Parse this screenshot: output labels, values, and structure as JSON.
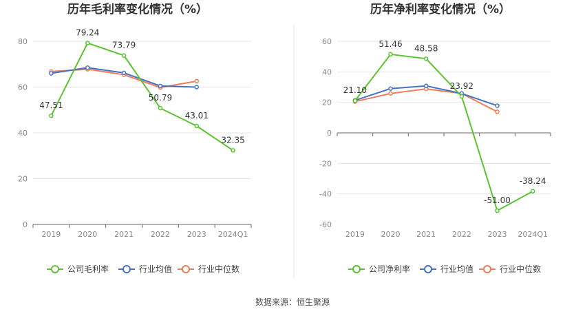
{
  "source_text": "数据来源：恒生聚源",
  "colors": {
    "company": "#5ac32f",
    "avg": "#4472c4",
    "median": "#ee7c58",
    "grid": "#e6e6e6",
    "axis": "#666666",
    "divider": "#e8e8e8"
  },
  "chart_data": [
    {
      "type": "line",
      "title": "历年毛利率变化情况（%）",
      "categories": [
        "2019",
        "2020",
        "2021",
        "2022",
        "2023",
        "2024Q1"
      ],
      "ylim": [
        0,
        80
      ],
      "yticks": [
        0,
        20,
        40,
        60,
        80
      ],
      "ytick_labels": [
        "0",
        "20",
        "40",
        "60",
        "80"
      ],
      "grid": true,
      "legend_position": "bottom",
      "series": [
        {
          "name": "公司毛利率",
          "color": "#5ac32f",
          "values": [
            47.51,
            79.24,
            73.79,
            50.79,
            43.01,
            32.35
          ],
          "labels": [
            "47.51",
            "79.24",
            "73.79",
            "50.79",
            "43.01",
            "32.35"
          ]
        },
        {
          "name": "行业均值",
          "color": "#4472c4",
          "values": [
            66.0,
            68.5,
            66.2,
            60.5,
            60.0,
            null
          ]
        },
        {
          "name": "行业中位数",
          "color": "#ee7c58",
          "values": [
            66.8,
            67.8,
            65.4,
            59.8,
            62.6,
            null
          ]
        }
      ]
    },
    {
      "type": "line",
      "title": "历年净利率变化情况（%）",
      "categories": [
        "2019",
        "2020",
        "2021",
        "2022",
        "2023",
        "2024Q1"
      ],
      "ylim": [
        -60,
        60
      ],
      "yticks": [
        -60,
        -40,
        -20,
        0,
        20,
        40,
        60
      ],
      "ytick_labels": [
        "-60",
        "-40",
        "-20",
        "0",
        "20",
        "40",
        "60"
      ],
      "grid": true,
      "legend_position": "bottom",
      "series": [
        {
          "name": "公司净利率",
          "color": "#5ac32f",
          "values": [
            21.1,
            51.46,
            48.58,
            23.92,
            -51.0,
            -38.24
          ],
          "labels": [
            "21.10",
            "51.46",
            "48.58",
            "23.92",
            "-51.00",
            "-38.24"
          ]
        },
        {
          "name": "行业均值",
          "color": "#4472c4",
          "values": [
            21.3,
            29.0,
            30.8,
            25.8,
            17.8,
            null
          ]
        },
        {
          "name": "行业中位数",
          "color": "#ee7c58",
          "values": [
            20.5,
            25.8,
            28.8,
            25.8,
            13.8,
            null
          ]
        }
      ]
    }
  ]
}
